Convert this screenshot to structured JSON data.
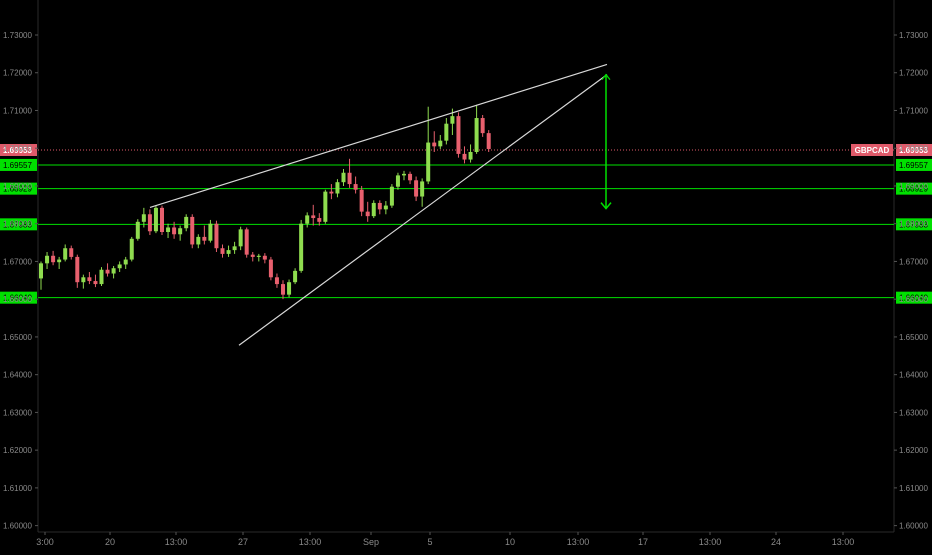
{
  "chart_data": {
    "type": "candlestick",
    "symbol": "GBPCAD",
    "last_price": "1.69953",
    "y_range": [
      1.6,
      1.735
    ],
    "y_ticks": [
      "1.73000",
      "1.72000",
      "1.71000",
      "1.70000",
      "1.69000",
      "1.68000",
      "1.67000",
      "1.66000",
      "1.65000",
      "1.64000",
      "1.63000",
      "1.62000",
      "1.61000",
      "1.60000"
    ],
    "x_ticks": [
      "3:00",
      "20",
      "13:00",
      "27",
      "13:00",
      "Sep",
      "5",
      "10",
      "13:00",
      "17",
      "13:00",
      "24",
      "13:00"
    ],
    "levels": [
      {
        "label": "1.69953",
        "value": 1.69953,
        "kind": "last"
      },
      {
        "label": "1.69557",
        "value": 1.69557,
        "kind": "support"
      },
      {
        "label": "1.68929",
        "value": 1.68929,
        "kind": "support"
      },
      {
        "label": "1.67983",
        "value": 1.67983,
        "kind": "support"
      },
      {
        "label": "1.66040",
        "value": 1.6604,
        "kind": "support"
      }
    ],
    "wedge_upper": {
      "from": [
        17,
        1.6843
      ],
      "to": [
        113,
        1.7222
      ]
    },
    "wedge_lower": {
      "from": [
        40,
        1.6478
      ],
      "to": [
        113,
        1.7195
      ]
    },
    "projection_arrow": {
      "from": [
        113,
        1.7195
      ],
      "to": [
        113,
        1.684
      ]
    },
    "candles": [
      {
        "o": 1.6655,
        "h": 1.67,
        "l": 1.6625,
        "c": 1.6695
      },
      {
        "o": 1.6695,
        "h": 1.6725,
        "l": 1.668,
        "c": 1.6715
      },
      {
        "o": 1.6715,
        "h": 1.6728,
        "l": 1.669,
        "c": 1.6698
      },
      {
        "o": 1.6698,
        "h": 1.6712,
        "l": 1.668,
        "c": 1.6705
      },
      {
        "o": 1.6705,
        "h": 1.6745,
        "l": 1.67,
        "c": 1.6735
      },
      {
        "o": 1.6735,
        "h": 1.6742,
        "l": 1.6705,
        "c": 1.6712
      },
      {
        "o": 1.6712,
        "h": 1.6718,
        "l": 1.663,
        "c": 1.6645
      },
      {
        "o": 1.6645,
        "h": 1.6665,
        "l": 1.6628,
        "c": 1.6658
      },
      {
        "o": 1.6658,
        "h": 1.6672,
        "l": 1.664,
        "c": 1.6648
      },
      {
        "o": 1.6648,
        "h": 1.6665,
        "l": 1.6632,
        "c": 1.664
      },
      {
        "o": 1.664,
        "h": 1.6685,
        "l": 1.6635,
        "c": 1.6678
      },
      {
        "o": 1.6678,
        "h": 1.6695,
        "l": 1.666,
        "c": 1.6668
      },
      {
        "o": 1.6668,
        "h": 1.6688,
        "l": 1.6655,
        "c": 1.6682
      },
      {
        "o": 1.6682,
        "h": 1.67,
        "l": 1.6672,
        "c": 1.6692
      },
      {
        "o": 1.6692,
        "h": 1.6712,
        "l": 1.668,
        "c": 1.6705
      },
      {
        "o": 1.6705,
        "h": 1.6765,
        "l": 1.67,
        "c": 1.676
      },
      {
        "o": 1.676,
        "h": 1.6812,
        "l": 1.6755,
        "c": 1.6805
      },
      {
        "o": 1.6805,
        "h": 1.6842,
        "l": 1.679,
        "c": 1.6825
      },
      {
        "o": 1.6825,
        "h": 1.6838,
        "l": 1.677,
        "c": 1.678
      },
      {
        "o": 1.678,
        "h": 1.6848,
        "l": 1.6775,
        "c": 1.6842
      },
      {
        "o": 1.6842,
        "h": 1.6848,
        "l": 1.677,
        "c": 1.6778
      },
      {
        "o": 1.6778,
        "h": 1.68,
        "l": 1.6762,
        "c": 1.679
      },
      {
        "o": 1.679,
        "h": 1.6805,
        "l": 1.676,
        "c": 1.6772
      },
      {
        "o": 1.6772,
        "h": 1.6795,
        "l": 1.6755,
        "c": 1.6788
      },
      {
        "o": 1.6788,
        "h": 1.6825,
        "l": 1.678,
        "c": 1.6818
      },
      {
        "o": 1.6818,
        "h": 1.6825,
        "l": 1.6735,
        "c": 1.6745
      },
      {
        "o": 1.6745,
        "h": 1.6772,
        "l": 1.6735,
        "c": 1.6765
      },
      {
        "o": 1.6765,
        "h": 1.6795,
        "l": 1.6745,
        "c": 1.6755
      },
      {
        "o": 1.6755,
        "h": 1.681,
        "l": 1.675,
        "c": 1.68
      },
      {
        "o": 1.68,
        "h": 1.6808,
        "l": 1.6725,
        "c": 1.6735
      },
      {
        "o": 1.6735,
        "h": 1.6745,
        "l": 1.671,
        "c": 1.672
      },
      {
        "o": 1.672,
        "h": 1.6742,
        "l": 1.6712,
        "c": 1.673
      },
      {
        "o": 1.673,
        "h": 1.6752,
        "l": 1.672,
        "c": 1.674
      },
      {
        "o": 1.674,
        "h": 1.6792,
        "l": 1.673,
        "c": 1.6785
      },
      {
        "o": 1.6785,
        "h": 1.679,
        "l": 1.671,
        "c": 1.6718
      },
      {
        "o": 1.6718,
        "h": 1.6725,
        "l": 1.67,
        "c": 1.6712
      },
      {
        "o": 1.6712,
        "h": 1.672,
        "l": 1.67,
        "c": 1.6715
      },
      {
        "o": 1.6715,
        "h": 1.6722,
        "l": 1.6695,
        "c": 1.6705
      },
      {
        "o": 1.6705,
        "h": 1.6712,
        "l": 1.665,
        "c": 1.6658
      },
      {
        "o": 1.6658,
        "h": 1.6668,
        "l": 1.663,
        "c": 1.664
      },
      {
        "o": 1.664,
        "h": 1.665,
        "l": 1.66,
        "c": 1.6612
      },
      {
        "o": 1.6612,
        "h": 1.6652,
        "l": 1.6605,
        "c": 1.6645
      },
      {
        "o": 1.6645,
        "h": 1.6682,
        "l": 1.664,
        "c": 1.6675
      },
      {
        "o": 1.6675,
        "h": 1.681,
        "l": 1.667,
        "c": 1.68
      },
      {
        "o": 1.68,
        "h": 1.683,
        "l": 1.679,
        "c": 1.6822
      },
      {
        "o": 1.6822,
        "h": 1.685,
        "l": 1.6795,
        "c": 1.6815
      },
      {
        "o": 1.6815,
        "h": 1.6828,
        "l": 1.6795,
        "c": 1.6805
      },
      {
        "o": 1.6805,
        "h": 1.689,
        "l": 1.68,
        "c": 1.6885
      },
      {
        "o": 1.6885,
        "h": 1.6905,
        "l": 1.6865,
        "c": 1.688
      },
      {
        "o": 1.688,
        "h": 1.6918,
        "l": 1.687,
        "c": 1.691
      },
      {
        "o": 1.691,
        "h": 1.6945,
        "l": 1.69,
        "c": 1.6935
      },
      {
        "o": 1.6935,
        "h": 1.6972,
        "l": 1.6895,
        "c": 1.6905
      },
      {
        "o": 1.6905,
        "h": 1.6925,
        "l": 1.688,
        "c": 1.689
      },
      {
        "o": 1.689,
        "h": 1.69,
        "l": 1.682,
        "c": 1.6832
      },
      {
        "o": 1.6832,
        "h": 1.6858,
        "l": 1.6805,
        "c": 1.682
      },
      {
        "o": 1.682,
        "h": 1.6862,
        "l": 1.6815,
        "c": 1.6855
      },
      {
        "o": 1.6855,
        "h": 1.6862,
        "l": 1.6825,
        "c": 1.6838
      },
      {
        "o": 1.6838,
        "h": 1.686,
        "l": 1.6825,
        "c": 1.6848
      },
      {
        "o": 1.6848,
        "h": 1.6905,
        "l": 1.6842,
        "c": 1.6898
      },
      {
        "o": 1.6898,
        "h": 1.6935,
        "l": 1.689,
        "c": 1.6928
      },
      {
        "o": 1.6928,
        "h": 1.694,
        "l": 1.6915,
        "c": 1.6932
      },
      {
        "o": 1.6932,
        "h": 1.6938,
        "l": 1.6905,
        "c": 1.6915
      },
      {
        "o": 1.6915,
        "h": 1.6925,
        "l": 1.686,
        "c": 1.6872
      },
      {
        "o": 1.6872,
        "h": 1.692,
        "l": 1.6845,
        "c": 1.6912
      },
      {
        "o": 1.6912,
        "h": 1.711,
        "l": 1.6905,
        "c": 1.7015
      },
      {
        "o": 1.7015,
        "h": 1.7045,
        "l": 1.699,
        "c": 1.7005
      },
      {
        "o": 1.7005,
        "h": 1.7035,
        "l": 1.6998,
        "c": 1.702
      },
      {
        "o": 1.702,
        "h": 1.708,
        "l": 1.701,
        "c": 1.7065
      },
      {
        "o": 1.7065,
        "h": 1.7105,
        "l": 1.7035,
        "c": 1.7085
      },
      {
        "o": 1.7085,
        "h": 1.7095,
        "l": 1.6975,
        "c": 1.6985
      },
      {
        "o": 1.6985,
        "h": 1.7005,
        "l": 1.696,
        "c": 1.697
      },
      {
        "o": 1.697,
        "h": 1.701,
        "l": 1.6962,
        "c": 1.699
      },
      {
        "o": 1.699,
        "h": 1.7115,
        "l": 1.6985,
        "c": 1.708
      },
      {
        "o": 1.708,
        "h": 1.7088,
        "l": 1.703,
        "c": 1.704
      },
      {
        "o": 1.704,
        "h": 1.7048,
        "l": 1.699,
        "c": 1.6998
      }
    ]
  }
}
